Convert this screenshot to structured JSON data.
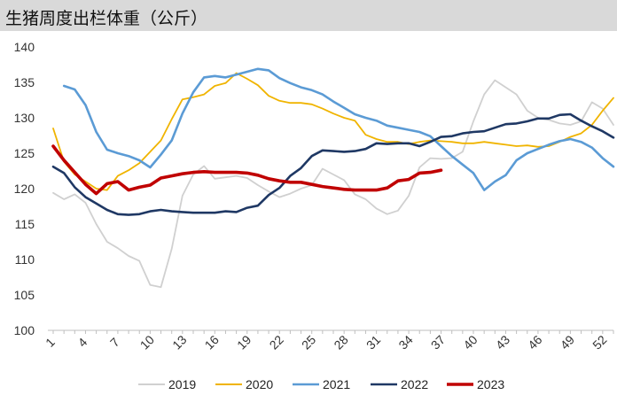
{
  "header": {
    "title": "生猪周度出栏体重（公斤）",
    "background": "#d9d9d9"
  },
  "chart_data": {
    "type": "line",
    "title": "生猪周度出栏体重（公斤）",
    "xlabel": "",
    "ylabel": "",
    "ylim": [
      100,
      140
    ],
    "yticks": [
      100,
      105,
      110,
      115,
      120,
      125,
      130,
      135,
      140
    ],
    "xlim": [
      1,
      53
    ],
    "xticks": [
      1,
      4,
      7,
      10,
      13,
      16,
      19,
      22,
      25,
      28,
      31,
      34,
      37,
      40,
      43,
      46,
      49,
      52
    ],
    "grid": false,
    "legend_position": "bottom",
    "series": [
      {
        "name": "2019",
        "color": "#d0d0d0",
        "width": 1.8,
        "x": [
          1,
          2,
          3,
          4,
          5,
          6,
          7,
          8,
          9,
          10,
          11,
          12,
          13,
          14,
          15,
          16,
          17,
          18,
          19,
          20,
          21,
          22,
          23,
          24,
          25,
          26,
          27,
          28,
          29,
          30,
          31,
          32,
          33,
          34,
          35,
          36,
          37,
          38,
          39,
          40,
          41,
          42,
          43,
          44,
          45,
          46,
          47,
          48,
          49,
          50,
          51,
          52,
          53
        ],
        "y": [
          119.4,
          118.5,
          119.2,
          118.0,
          115.0,
          112.5,
          111.6,
          110.5,
          109.8,
          106.4,
          106.1,
          111.5,
          119.0,
          122.0,
          123.2,
          121.4,
          121.6,
          121.8,
          121.5,
          120.5,
          119.6,
          118.8,
          119.3,
          120.0,
          120.5,
          122.8,
          122.0,
          121.2,
          119.2,
          118.5,
          117.2,
          116.4,
          116.9,
          119.0,
          123.0,
          124.3,
          124.2,
          124.3,
          125.2,
          129.5,
          133.3,
          135.3,
          134.3,
          133.3,
          131.0,
          130.0,
          129.7,
          129.2,
          129.0,
          129.5,
          132.2,
          131.3,
          129.0
        ]
      },
      {
        "name": "2020",
        "color": "#f0b400",
        "width": 1.8,
        "x": [
          1,
          2,
          3,
          4,
          5,
          6,
          7,
          8,
          9,
          10,
          11,
          12,
          13,
          14,
          15,
          16,
          17,
          18,
          19,
          20,
          21,
          22,
          23,
          24,
          25,
          26,
          27,
          28,
          29,
          30,
          31,
          32,
          33,
          34,
          35,
          36,
          37,
          38,
          39,
          40,
          41,
          42,
          43,
          44,
          45,
          46,
          47,
          48,
          49,
          50,
          51,
          52,
          53
        ],
        "y": [
          128.5,
          123.8,
          122.0,
          121.0,
          120.0,
          119.8,
          121.8,
          122.6,
          123.6,
          125.2,
          126.8,
          129.8,
          132.6,
          132.9,
          133.3,
          134.5,
          134.9,
          136.3,
          135.5,
          134.6,
          133.1,
          132.4,
          132.1,
          132.1,
          131.9,
          131.3,
          130.6,
          130.0,
          129.6,
          127.6,
          127.0,
          126.6,
          126.6,
          126.3,
          126.6,
          126.8,
          126.7,
          126.6,
          126.4,
          126.4,
          126.6,
          126.4,
          126.2,
          126.0,
          126.1,
          125.9,
          126.0,
          126.6,
          127.3,
          127.8,
          129.0,
          131.0,
          132.8
        ]
      },
      {
        "name": "2021",
        "color": "#5b9bd5",
        "width": 2.6,
        "x": [
          2,
          3,
          4,
          5,
          6,
          7,
          8,
          9,
          10,
          11,
          12,
          13,
          14,
          15,
          16,
          17,
          18,
          19,
          20,
          21,
          22,
          23,
          24,
          25,
          26,
          27,
          28,
          29,
          30,
          31,
          32,
          33,
          34,
          35,
          36,
          37,
          38,
          39,
          40,
          41,
          42,
          43,
          44,
          45,
          46,
          47,
          48,
          49,
          50,
          51,
          52,
          53
        ],
        "y": [
          134.5,
          134.0,
          131.8,
          128.0,
          125.5,
          125.0,
          124.6,
          124.0,
          123.0,
          124.8,
          126.8,
          130.6,
          133.6,
          135.7,
          135.9,
          135.7,
          136.1,
          136.5,
          136.9,
          136.7,
          135.6,
          134.9,
          134.3,
          133.9,
          133.3,
          132.3,
          131.4,
          130.5,
          130.0,
          129.6,
          128.9,
          128.6,
          128.3,
          128.0,
          127.4,
          126.0,
          124.6,
          123.4,
          122.2,
          119.8,
          121.0,
          121.9,
          124.0,
          125.0,
          125.6,
          126.2,
          126.7,
          127.0,
          126.6,
          125.8,
          124.3,
          123.1
        ]
      },
      {
        "name": "2022",
        "color": "#1f3864",
        "width": 2.6,
        "x": [
          1,
          2,
          3,
          4,
          5,
          6,
          7,
          8,
          9,
          10,
          11,
          12,
          13,
          14,
          15,
          16,
          17,
          18,
          19,
          20,
          21,
          22,
          23,
          24,
          25,
          26,
          27,
          28,
          29,
          30,
          31,
          32,
          33,
          34,
          35,
          36,
          37,
          38,
          39,
          40,
          41,
          42,
          43,
          44,
          45,
          46,
          47,
          48,
          49,
          50,
          51,
          52,
          53
        ],
        "y": [
          123.1,
          122.2,
          120.2,
          118.8,
          117.9,
          117.0,
          116.4,
          116.3,
          116.4,
          116.8,
          117.0,
          116.8,
          116.7,
          116.6,
          116.6,
          116.6,
          116.8,
          116.7,
          117.3,
          117.6,
          119.1,
          120.1,
          121.8,
          122.9,
          124.6,
          125.4,
          125.3,
          125.2,
          125.3,
          125.6,
          126.4,
          126.3,
          126.4,
          126.4,
          126.0,
          126.6,
          127.3,
          127.4,
          127.8,
          128.0,
          128.1,
          128.6,
          129.1,
          129.2,
          129.5,
          129.9,
          129.9,
          130.4,
          130.5,
          129.6,
          128.8,
          128.1,
          127.2
        ]
      },
      {
        "name": "2023",
        "color": "#c00000",
        "width": 3.6,
        "x": [
          1,
          2,
          3,
          4,
          5,
          6,
          7,
          8,
          9,
          10,
          11,
          12,
          13,
          14,
          15,
          16,
          17,
          18,
          19,
          20,
          21,
          22,
          23,
          24,
          25,
          26,
          27,
          28,
          29,
          30,
          31,
          32,
          33,
          34,
          35,
          36,
          37
        ],
        "y": [
          126.0,
          124.0,
          122.3,
          120.6,
          119.3,
          120.7,
          121.0,
          119.8,
          120.2,
          120.5,
          121.5,
          121.8,
          122.1,
          122.3,
          122.4,
          122.3,
          122.3,
          122.3,
          122.2,
          121.9,
          121.4,
          121.1,
          120.9,
          120.9,
          120.6,
          120.3,
          120.1,
          119.9,
          119.8,
          119.8,
          119.8,
          120.1,
          121.1,
          121.3,
          122.2,
          122.3,
          122.6
        ]
      }
    ]
  }
}
